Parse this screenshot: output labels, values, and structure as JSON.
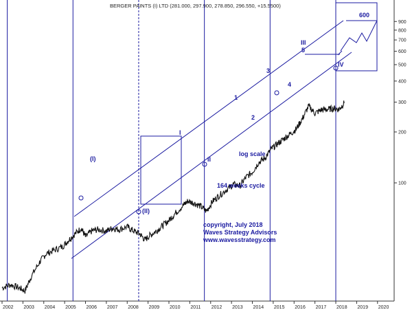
{
  "chart_data": {
    "type": "line",
    "title": "BERGER PAINTS (I) LTD (281.000, 297.900, 278.850, 296.550, +15.5500)",
    "yscale": "log",
    "ylim": [
      20,
      1000
    ],
    "xlim": [
      2002.0,
      2020.6
    ],
    "x_ticks": [
      "2002",
      "2003",
      "2004",
      "2005",
      "2006",
      "2007",
      "2008",
      "2009",
      "2010",
      "2011",
      "2012",
      "2013",
      "2014",
      "2015",
      "2016",
      "2017",
      "2018",
      "2019",
      "2020"
    ],
    "y_ticks": [
      100,
      200,
      300,
      400,
      500,
      600,
      700,
      800,
      900
    ],
    "series": [
      {
        "x": [
          2002.0,
          2002.4,
          2002.8,
          2003.1,
          2003.4,
          2003.8,
          2004.1,
          2004.5,
          2004.9,
          2005.2,
          2005.5,
          2005.8,
          2006.0,
          2006.3,
          2006.6,
          2007.0,
          2007.3,
          2007.6,
          2008.0,
          2008.3,
          2008.6,
          2008.85,
          2009.1,
          2009.4,
          2009.7,
          2010.0,
          2010.3,
          2010.7,
          2010.9,
          2011.2,
          2011.5,
          2011.8,
          2012.1,
          2012.4,
          2012.8,
          2013.1,
          2013.4,
          2013.7,
          2014.0,
          2014.3,
          2014.6,
          2014.9,
          2015.2,
          2015.5,
          2015.8,
          2016.1,
          2016.4,
          2016.7,
          2017.0,
          2017.3,
          2017.6,
          2017.9,
          2018.15,
          2018.4
        ],
        "y": [
          24,
          25,
          24,
          23,
          28,
          34,
          38,
          40,
          42,
          46,
          50,
          54,
          48,
          52,
          53,
          52,
          54,
          53,
          55,
          52,
          50,
          46,
          49,
          52,
          56,
          60,
          66,
          74,
          78,
          76,
          73,
          68,
          78,
          84,
          92,
          98,
          96,
          108,
          116,
          132,
          140,
          158,
          170,
          182,
          194,
          208,
          240,
          285,
          258,
          270,
          272,
          276,
          272,
          296
        ]
      }
    ],
    "annotations": [
      "(I)",
      "(II)",
      "I",
      "II",
      "1",
      "2",
      "3",
      "4",
      "5",
      "III",
      "IV",
      "600",
      "log scale",
      "164 weeks cycle"
    ],
    "copyright": [
      "copyright, July 2018",
      "Waves Strategy Advisors",
      "www.wavesstrategy.com"
    ]
  }
}
